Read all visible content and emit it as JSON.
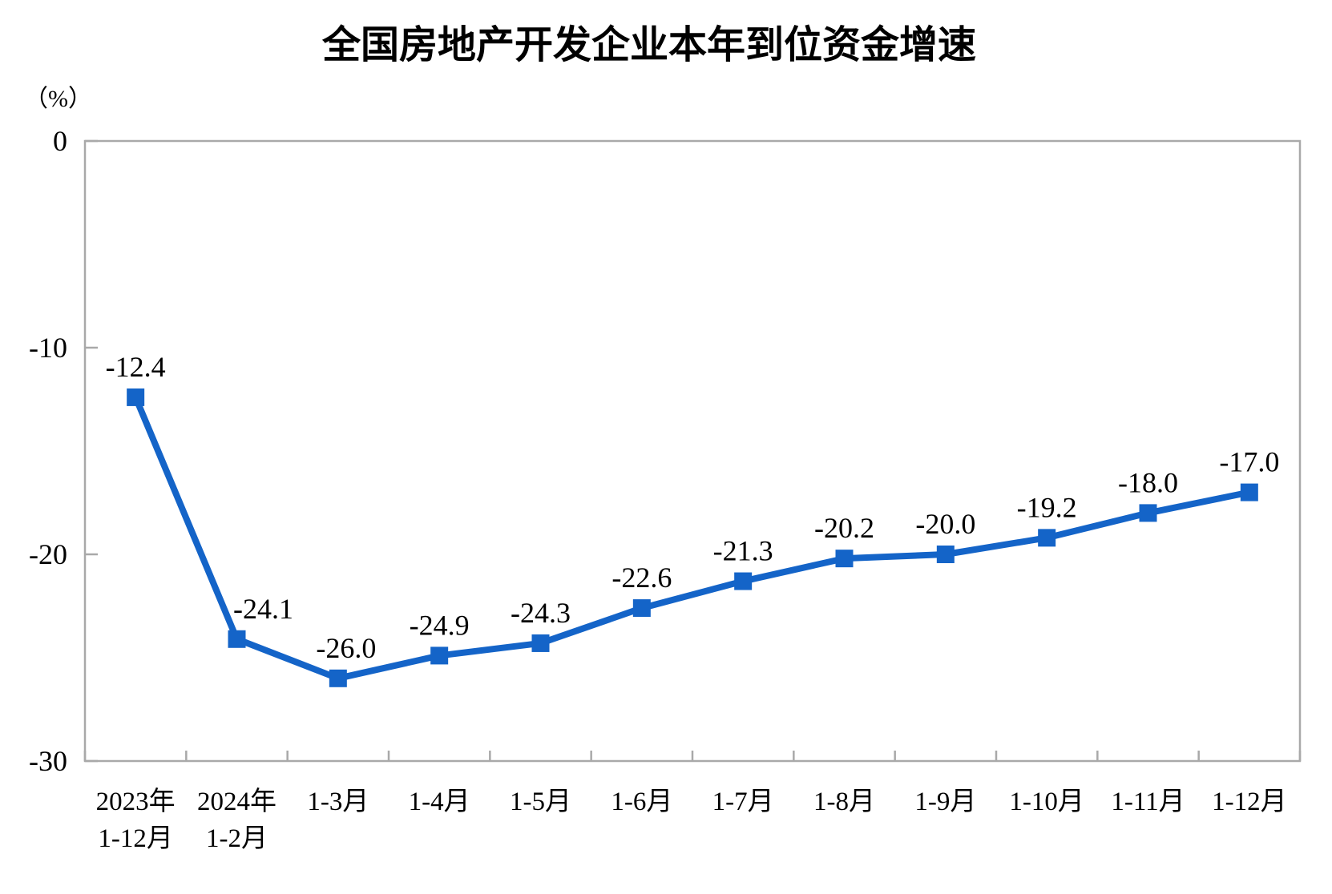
{
  "page": {
    "background": "#ffffff"
  },
  "chart_data": {
    "type": "line",
    "title": "全国房地产开发企业本年到位资金增速",
    "ylabel": "（%）",
    "xlabel": "",
    "categories": [
      "2023年\n1-12月",
      "2024年\n1-2月",
      "1-3月",
      "1-4月",
      "1-5月",
      "1-6月",
      "1-7月",
      "1-8月",
      "1-9月",
      "1-10月",
      "1-11月",
      "1-12月"
    ],
    "values": [
      -12.4,
      -24.1,
      -26.0,
      -24.9,
      -24.3,
      -22.6,
      -21.3,
      -20.2,
      -20.0,
      -19.2,
      -18.0,
      -17.0
    ],
    "data_labels": [
      "-12.4",
      "-24.1",
      "-26.0",
      "-24.9",
      "-24.3",
      "-22.6",
      "-21.3",
      "-20.2",
      "-20.0",
      "-19.2",
      "-18.0",
      "-17.0"
    ],
    "ylim": [
      -30,
      0
    ],
    "yticks": [
      0,
      -10,
      -20,
      -30
    ],
    "ytick_labels": [
      "0",
      "-10",
      "-20",
      "-30"
    ],
    "grid": false,
    "legend": "none",
    "marker": "square",
    "series_color": "#1464c8",
    "axis_color": "#a9a9a9",
    "label_color": "#000000",
    "label_dx": [
      0,
      33,
      10,
      0,
      0,
      0,
      0,
      0,
      0,
      0,
      0,
      0
    ]
  }
}
